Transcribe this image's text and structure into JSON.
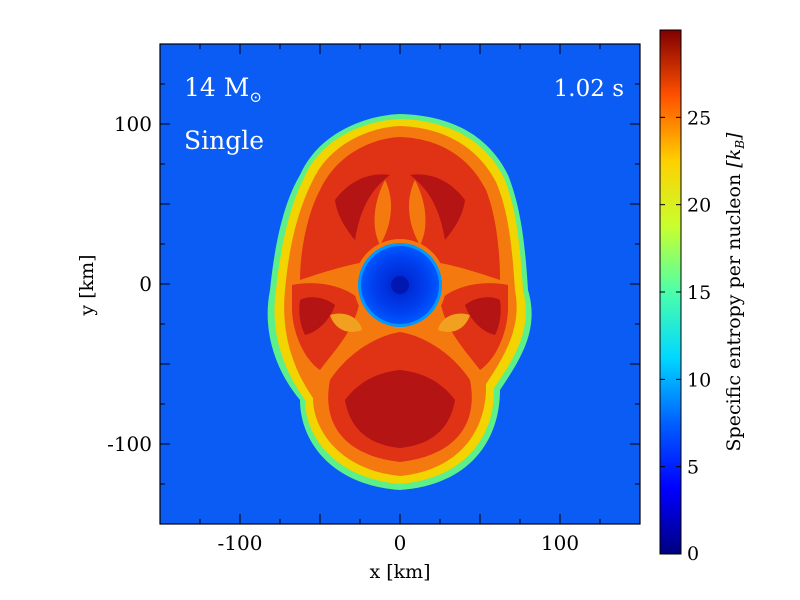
{
  "chart_data": {
    "type": "heatmap",
    "title": "",
    "xlabel": "x [km]",
    "ylabel": "y [km]",
    "xlim": [
      -150,
      150
    ],
    "ylim": [
      -150,
      150
    ],
    "x_ticks": [
      "-100",
      "0",
      "100"
    ],
    "y_ticks": [
      "100",
      "0",
      "-100"
    ],
    "annotations": {
      "mass": "14 M",
      "mass_symbol": "⊙",
      "time": "1.02 s",
      "model": "Single"
    },
    "colorbar": {
      "label": "Specific entropy per nucleon",
      "unit_label": "[k",
      "unit_sub": "B",
      "unit_close": "]",
      "range": [
        0,
        30
      ],
      "ticks": [
        "0",
        "5",
        "10",
        "15",
        "20",
        "25"
      ],
      "colormap": "jet"
    }
  },
  "colors": {
    "background_blue": "#0a5cf4",
    "core_blue": "#0033e0",
    "shell_yellow": "#f2d400",
    "shell_orange": "#f47a10",
    "plume_red": "#e03214",
    "plume_darkred": "#b41414"
  }
}
